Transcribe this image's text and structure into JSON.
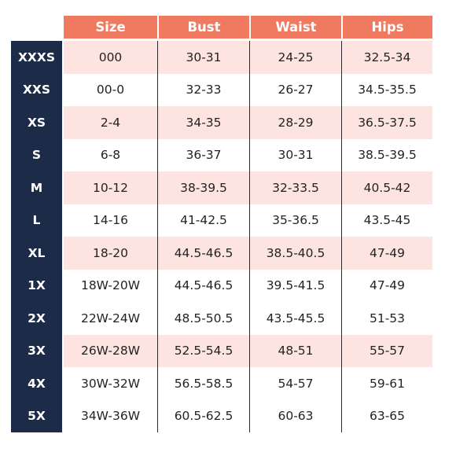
{
  "headers": {
    "size": "Size",
    "bust": "Bust",
    "waist": "Waist",
    "hips": "Hips"
  },
  "colors": {
    "header_bg": "#f07a60",
    "sidebar_bg": "#1c2c48",
    "row_shade": "#fde4e0",
    "row_plain": "#ffffff"
  },
  "rows": [
    {
      "label": "XXXS",
      "size": "000",
      "bust": "30-31",
      "waist": "24-25",
      "hips": "32.5-34"
    },
    {
      "label": "XXS",
      "size": "00-0",
      "bust": "32-33",
      "waist": "26-27",
      "hips": "34.5-35.5"
    },
    {
      "label": "XS",
      "size": "2-4",
      "bust": "34-35",
      "waist": "28-29",
      "hips": "36.5-37.5"
    },
    {
      "label": "S",
      "size": "6-8",
      "bust": "36-37",
      "waist": "30-31",
      "hips": "38.5-39.5"
    },
    {
      "label": "M",
      "size": "10-12",
      "bust": "38-39.5",
      "waist": "32-33.5",
      "hips": "40.5-42"
    },
    {
      "label": "L",
      "size": "14-16",
      "bust": "41-42.5",
      "waist": "35-36.5",
      "hips": "43.5-45"
    },
    {
      "label": "XL",
      "size": "18-20",
      "bust": "44.5-46.5",
      "waist": "38.5-40.5",
      "hips": "47-49"
    },
    {
      "label": "1X",
      "size": "18W-20W",
      "bust": "44.5-46.5",
      "waist": "39.5-41.5",
      "hips": "47-49"
    },
    {
      "label": "2X",
      "size": "22W-24W",
      "bust": "48.5-50.5",
      "waist": "43.5-45.5",
      "hips": "51-53"
    },
    {
      "label": "3X",
      "size": "26W-28W",
      "bust": "52.5-54.5",
      "waist": "48-51",
      "hips": "55-57"
    },
    {
      "label": "4X",
      "size": "30W-32W",
      "bust": "56.5-58.5",
      "waist": "54-57",
      "hips": "59-61"
    },
    {
      "label": "5X",
      "size": "34W-36W",
      "bust": "60.5-62.5",
      "waist": "60-63",
      "hips": "63-65"
    }
  ]
}
